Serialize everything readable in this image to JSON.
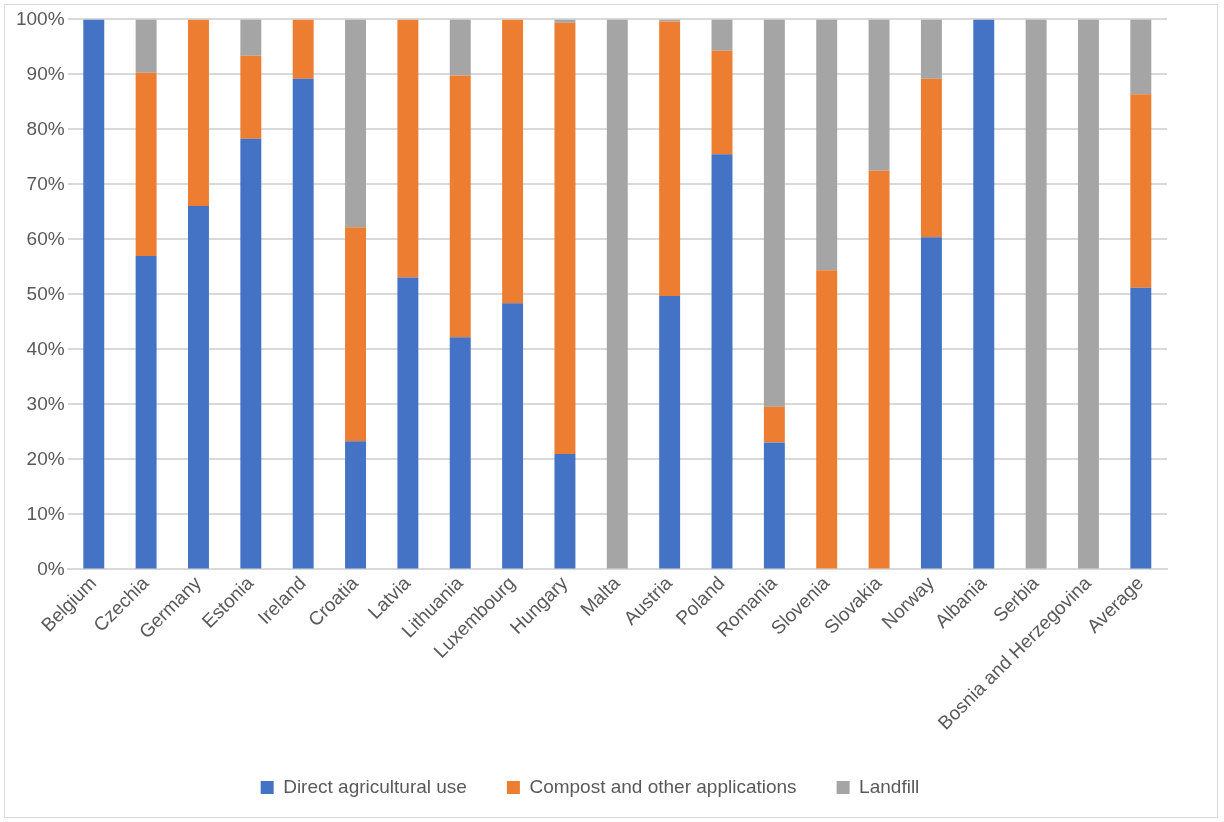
{
  "chart_data": {
    "type": "bar",
    "stacked": true,
    "categories": [
      "Belgium",
      "Czechia",
      "Germany",
      "Estonia",
      "Ireland",
      "Croatia",
      "Latvia",
      "Lithuania",
      "Luxembourg",
      "Hungary",
      "Malta",
      "Austria",
      "Poland",
      "Romania",
      "Slovenia",
      "Slovakia",
      "Norway",
      "Albania",
      "Serbia",
      "Bosnia and Herzegovina",
      "Average"
    ],
    "series": [
      {
        "name": "Direct agricultural use",
        "color": "#4472c4",
        "values": [
          100,
          57,
          66.1,
          78.3,
          89.2,
          23.3,
          53.1,
          42.2,
          48.4,
          21,
          0,
          49.7,
          75.5,
          23.1,
          0,
          0,
          60.4,
          100,
          0,
          0,
          51.2
        ]
      },
      {
        "name": "Compost and other applications",
        "color": "#ed7d31",
        "values": [
          0,
          33.3,
          33.9,
          15.1,
          10.8,
          38.9,
          46.9,
          47.6,
          51.6,
          78.4,
          0,
          49.9,
          18.8,
          6.5,
          54.4,
          72.5,
          28.8,
          0,
          0,
          0,
          35.2
        ]
      },
      {
        "name": "Landfill",
        "color": "#a5a5a5",
        "values": [
          0,
          9.7,
          0,
          6.6,
          null,
          37.8,
          0,
          10.2,
          0,
          0.6,
          100,
          0.4,
          5.7,
          70.4,
          45.6,
          27.5,
          10.8,
          0,
          100,
          100,
          13.6
        ]
      }
    ],
    "ylim": [
      0,
      100
    ],
    "yticks": [
      {
        "value": 0,
        "label": "0%"
      },
      {
        "value": 10,
        "label": "10%"
      },
      {
        "value": 20,
        "label": "20%"
      },
      {
        "value": 30,
        "label": "30%"
      },
      {
        "value": 40,
        "label": "40%"
      },
      {
        "value": 50,
        "label": "50%"
      },
      {
        "value": 60,
        "label": "60%"
      },
      {
        "value": 70,
        "label": "70%"
      },
      {
        "value": 80,
        "label": "80%"
      },
      {
        "value": 90,
        "label": "90%"
      },
      {
        "value": 100,
        "label": "100%"
      }
    ],
    "grid": "y",
    "legend": "bottom"
  }
}
